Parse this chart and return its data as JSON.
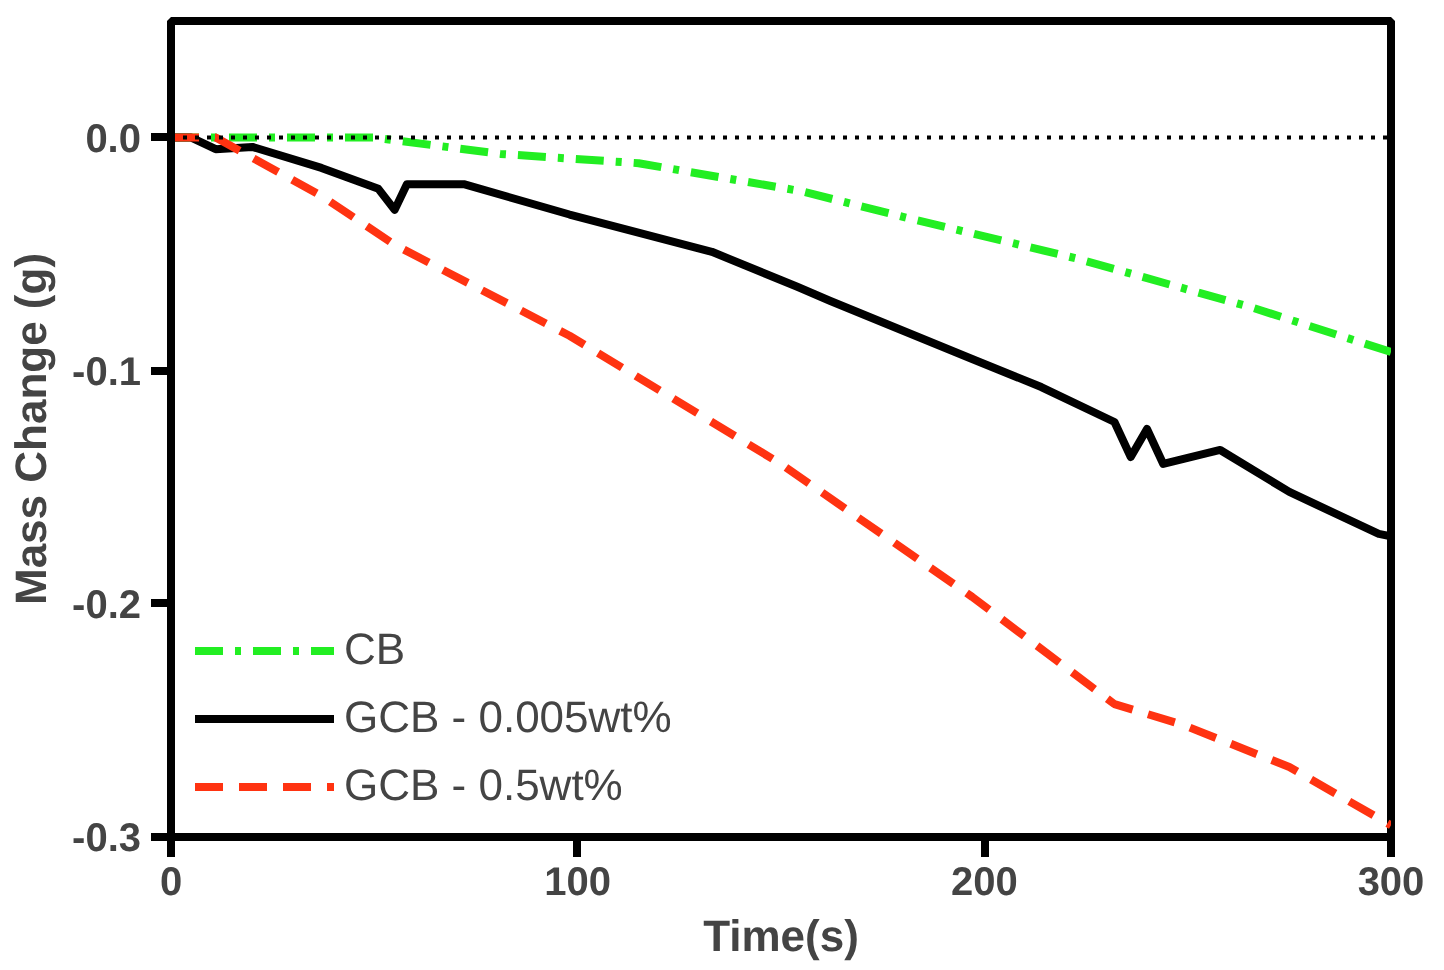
{
  "chart_data": {
    "type": "line",
    "xlabel": "Time(s)",
    "ylabel": "Mass Change (g)",
    "xlim": [
      0,
      300
    ],
    "ylim": [
      -0.3,
      0.05
    ],
    "xticks": [
      0,
      100,
      200,
      300
    ],
    "yticks": [
      {
        "value": 0,
        "label": "0.0"
      },
      {
        "value": -0.1,
        "label": "-0.1"
      },
      {
        "value": -0.2,
        "label": "-0.2"
      },
      {
        "value": -0.3,
        "label": "-0.3"
      }
    ],
    "grid": false,
    "legend": "bottom left",
    "marker": "none",
    "ref_lines": [
      {
        "axis": "y",
        "value": 0,
        "color": "#000000",
        "line_style": "dotted"
      }
    ],
    "series": [
      {
        "name": "CB",
        "color": "#22ee22",
        "line_style": "dashdot",
        "x": [
          0,
          20,
          50,
          81,
          115,
          155,
          180,
          223,
          266,
          300
        ],
        "values": [
          0,
          0,
          0,
          -0.007,
          -0.011,
          -0.023,
          -0.034,
          -0.052,
          -0.073,
          -0.092
        ]
      },
      {
        "name": "GCB - 0.005wt%",
        "color": "#000000",
        "line_style": "solid",
        "x": [
          0,
          5,
          11,
          20,
          37,
          51,
          55,
          58,
          72,
          98,
          133,
          154,
          162,
          197,
          214,
          232,
          236,
          240,
          244,
          258,
          275,
          297,
          300
        ],
        "values": [
          0,
          0,
          -0.005,
          -0.004,
          -0.013,
          -0.022,
          -0.031,
          -0.02,
          -0.02,
          -0.033,
          -0.049,
          -0.064,
          -0.07,
          -0.095,
          -0.107,
          -0.122,
          -0.137,
          -0.125,
          -0.14,
          -0.134,
          -0.152,
          -0.17,
          -0.171
        ]
      },
      {
        "name": "GCB - 0.5wt%",
        "color": "#ff3311",
        "line_style": "dashed",
        "x": [
          0,
          11,
          37,
          55,
          98,
          150,
          197,
          232,
          249,
          275,
          300
        ],
        "values": [
          0,
          0,
          -0.025,
          -0.046,
          -0.085,
          -0.14,
          -0.197,
          -0.243,
          -0.252,
          -0.27,
          -0.295
        ]
      }
    ]
  }
}
